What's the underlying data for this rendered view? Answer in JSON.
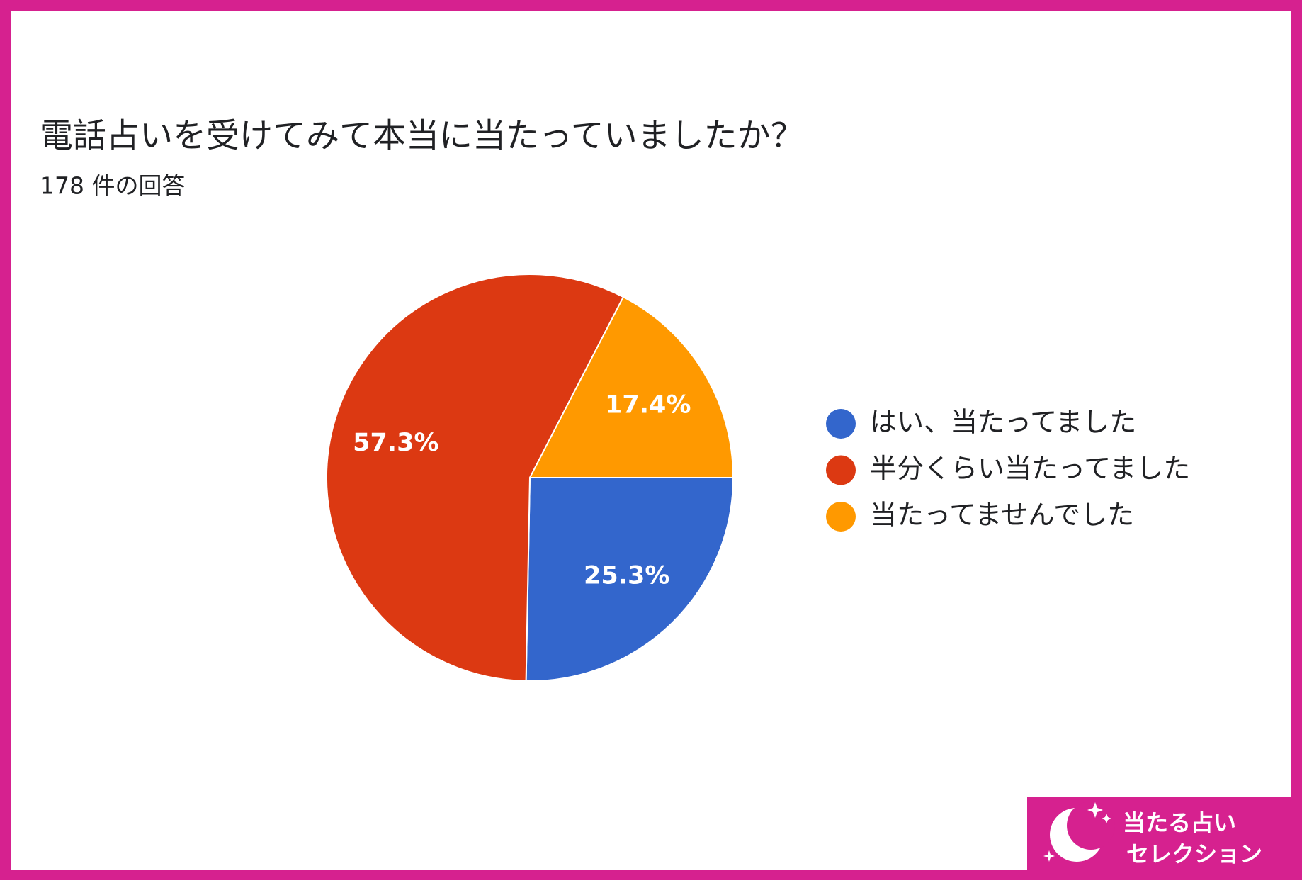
{
  "chart_data": {
    "type": "pie",
    "title": "電話占いを受けてみて本当に当たっていましたか？",
    "subtitle": "178 件の回答",
    "categories": [
      "はい、当たってました",
      "半分くらい当たってました",
      "当たってませんでした"
    ],
    "values": [
      25.3,
      57.3,
      17.4
    ],
    "value_labels": [
      "25.3%",
      "57.3%",
      "17.4%"
    ],
    "colors": [
      "#3366cc",
      "#dc3912",
      "#ff9900"
    ],
    "legend": "right"
  },
  "logo": {
    "line1": "当たる占い",
    "line2": "セレクション"
  }
}
